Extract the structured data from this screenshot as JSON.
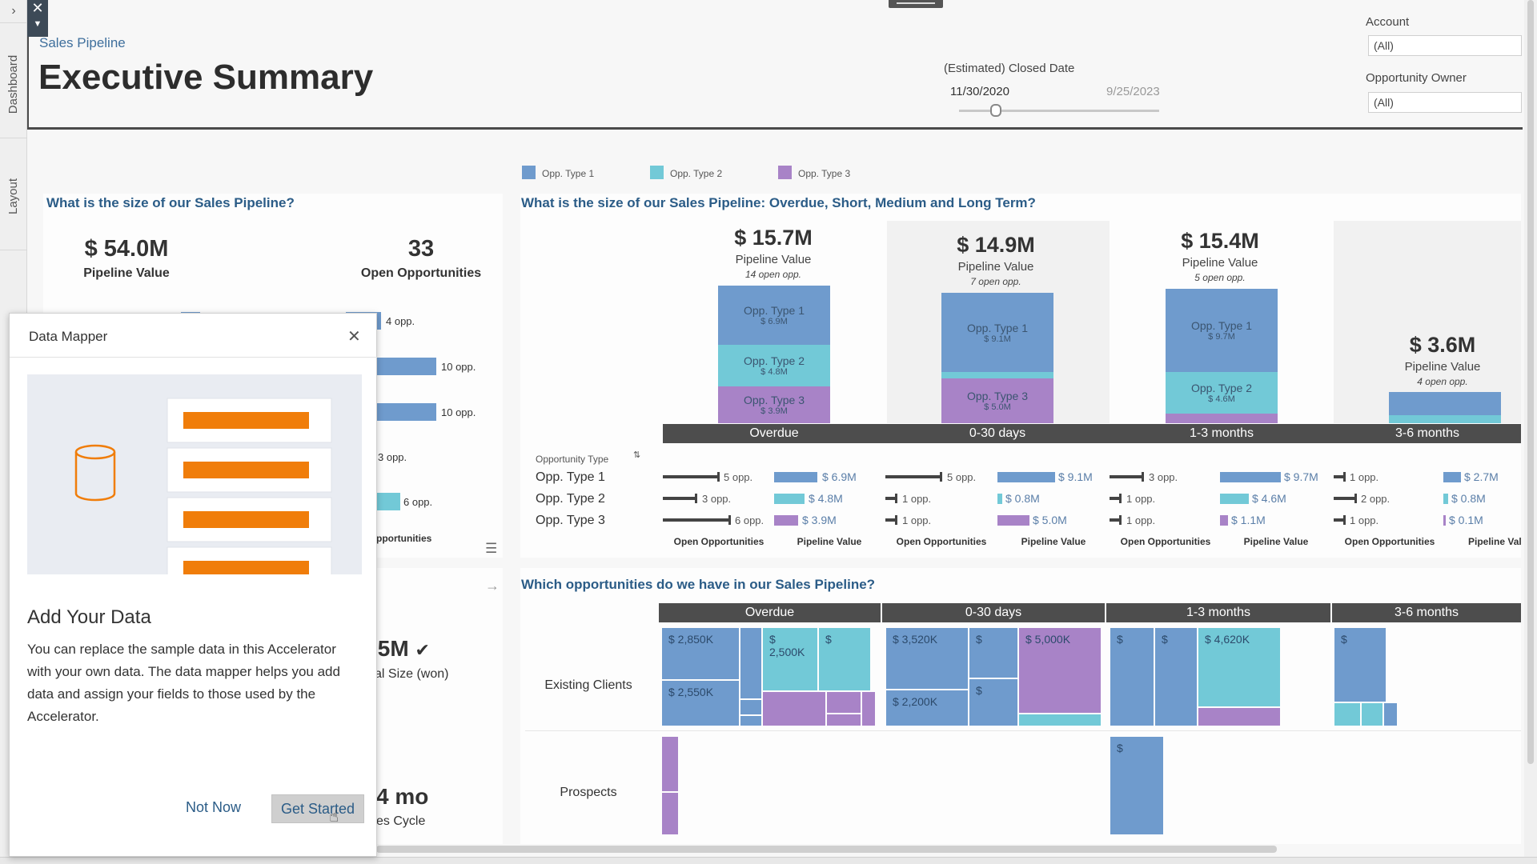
{
  "rail": {
    "tab_dashboard": "Dashboard",
    "tab_layout": "Layout",
    "expand_icon": "chevron-right-icon"
  },
  "header": {
    "breadcrumb": "Sales Pipeline",
    "title": "Executive Summary",
    "date_filter": {
      "label": "(Estimated) Closed Date",
      "start": "11/30/2020",
      "end": "9/25/2023",
      "slider_position": 0.16
    },
    "account": {
      "label": "Account",
      "value": "(All)"
    },
    "owner": {
      "label": "Opportunity Owner",
      "value": "(All)"
    }
  },
  "colors": {
    "type1": "#6f9bcd",
    "type2": "#72c9d7",
    "type3": "#a883c7",
    "band": "#4d4d4d",
    "title": "#2b5c87"
  },
  "legend": [
    {
      "label": "Opp. Type 1",
      "color": "#6f9bcd"
    },
    {
      "label": "Opp. Type 2",
      "color": "#72c9d7"
    },
    {
      "label": "Opp. Type 3",
      "color": "#a883c7"
    }
  ],
  "size_panel": {
    "question": "What is the size of our Sales Pipeline?",
    "pipeline_value": "$ 54.0M",
    "pipeline_label": "Pipeline Value",
    "open_opps": "33",
    "open_label": "Open Opportunities",
    "bars": [
      "4 opp.",
      "10 opp.",
      "10 opp.",
      "3 opp.",
      "6 opp."
    ],
    "footer": "pportunities",
    "deal_value": ".5M",
    "deal_label": "al Size (won)",
    "cycle_value": "4 mo",
    "cycle_label": "es Cycle"
  },
  "timing": {
    "question": "What is the size of our Sales Pipeline: Overdue, Short, Medium and Long Term?",
    "pipeline_label": "Pipeline Value",
    "groups": [
      {
        "band": "Overdue",
        "value": "$ 15.7M",
        "opps": "14 open opp.",
        "segments": [
          {
            "type": "Opp. Type 1",
            "value": "$ 6.9M"
          },
          {
            "type": "Opp. Type 2",
            "value": "$ 4.8M"
          },
          {
            "type": "Opp. Type 3",
            "value": "$ 3.9M"
          }
        ]
      },
      {
        "band": "0-30 days",
        "value": "$ 14.9M",
        "opps": "7 open opp.",
        "segments": [
          {
            "type": "Opp. Type 1",
            "value": "$ 9.1M"
          },
          {
            "type": "Opp. Type 3",
            "value": "$ 5.0M"
          }
        ]
      },
      {
        "band": "1-3 months",
        "value": "$ 15.4M",
        "opps": "5 open opp.",
        "segments": [
          {
            "type": "Opp. Type 1",
            "value": "$ 9.7M"
          },
          {
            "type": "Opp. Type 2",
            "value": "$ 4.6M"
          }
        ]
      },
      {
        "band": "3-6 months",
        "value": "$ 3.6M",
        "opps": "4 open opp.",
        "segments": []
      }
    ],
    "table_header": "Opportunity Type",
    "rows": [
      "Opp. Type 1",
      "Opp. Type 2",
      "Opp. Type 3"
    ],
    "cells": [
      [
        [
          "5 opp.",
          "$ 6.9M"
        ],
        [
          "5 opp.",
          "$ 9.1M"
        ],
        [
          "3 opp.",
          "$ 9.7M"
        ],
        [
          "1 opp.",
          "$ 2.7M"
        ]
      ],
      [
        [
          "3 opp.",
          "$ 4.8M"
        ],
        [
          "1 opp.",
          "$ 0.8M"
        ],
        [
          "1 opp.",
          "$ 4.6M"
        ],
        [
          "2 opp.",
          "$ 0.8M"
        ]
      ],
      [
        [
          "6 opp.",
          "$ 3.9M"
        ],
        [
          "1 opp.",
          "$ 5.0M"
        ],
        [
          "1 opp.",
          "$ 1.1M"
        ],
        [
          "1 opp.",
          "$ 0.1M"
        ]
      ]
    ],
    "col_open": "Open Opportunities",
    "col_value": "Pipeline Value",
    "col_value_cut": "Pipeline Val"
  },
  "treemap": {
    "question": "Which opportunities do we have in our Sales Pipeline?",
    "bands": [
      "Overdue",
      "0-30 days",
      "1-3 months",
      "3-6 months"
    ],
    "row_existing": "Existing Clients",
    "row_prospects": "Prospects",
    "labels": {
      "a": "$ 2,850K",
      "b": "$ 2,550K",
      "c": "$",
      "c2": "2,500K",
      "d": "$",
      "e": "$ 3,520K",
      "f": "$",
      "g": "$ 5,000K",
      "h": "$ 2,200K",
      "i": "$",
      "j": "$",
      "k": "$",
      "l": "$ 4,620K",
      "m": "$",
      "n": "$"
    }
  },
  "dialog": {
    "title": "Data Mapper",
    "heading": "Add Your Data",
    "body": "You can replace the sample data in this Accelerator with your own data. The data mapper helps you add data and assign your fields to those used by the Accelerator.",
    "not_now": "Not Now",
    "get_started": "Get Started"
  }
}
